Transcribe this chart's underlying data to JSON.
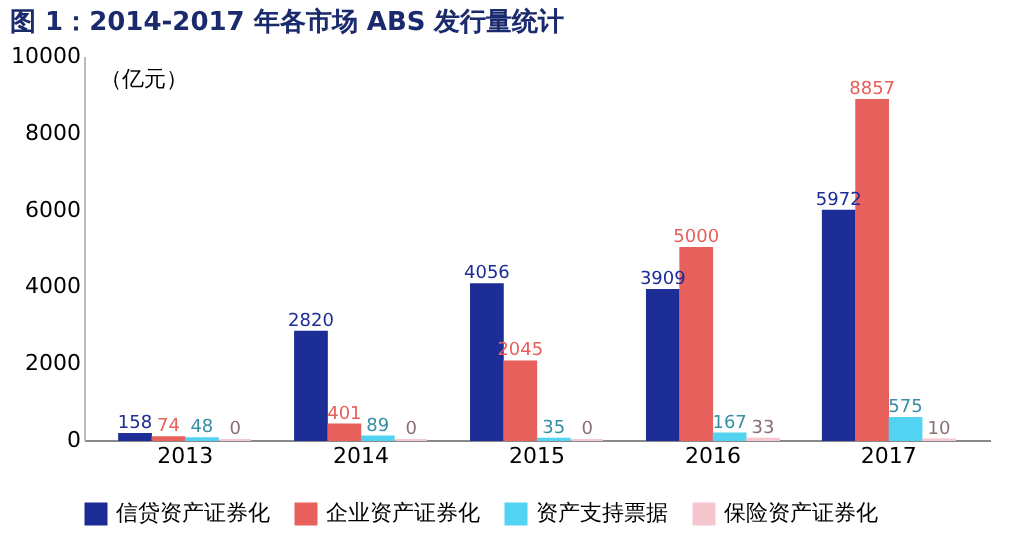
{
  "chart_data": {
    "type": "bar",
    "title": "图 1：2014-2017 年各市场 ABS 发行量统计",
    "ylabel": "（亿元）",
    "categories": [
      "2013",
      "2014",
      "2015",
      "2016",
      "2017"
    ],
    "series": [
      {
        "name": "信贷资产证券化",
        "color": "#1c2d96",
        "values": [
          158,
          2820,
          4056,
          3909,
          5972
        ]
      },
      {
        "name": "企业资产证券化",
        "color": "#e8605c",
        "values": [
          74,
          401,
          2045,
          5000,
          8857
        ]
      },
      {
        "name": "资产支持票据",
        "color": "#52d3f2",
        "values": [
          48,
          89,
          35,
          167,
          575
        ]
      },
      {
        "name": "保险资产证券化",
        "color": "#f6c6cf",
        "values": [
          0,
          0,
          0,
          33,
          10
        ]
      }
    ],
    "ylim": [
      0,
      10000
    ],
    "yticks": [
      0,
      2000,
      4000,
      6000,
      8000,
      10000
    ],
    "grid": false,
    "legend": "bottom",
    "data_labels": true
  }
}
